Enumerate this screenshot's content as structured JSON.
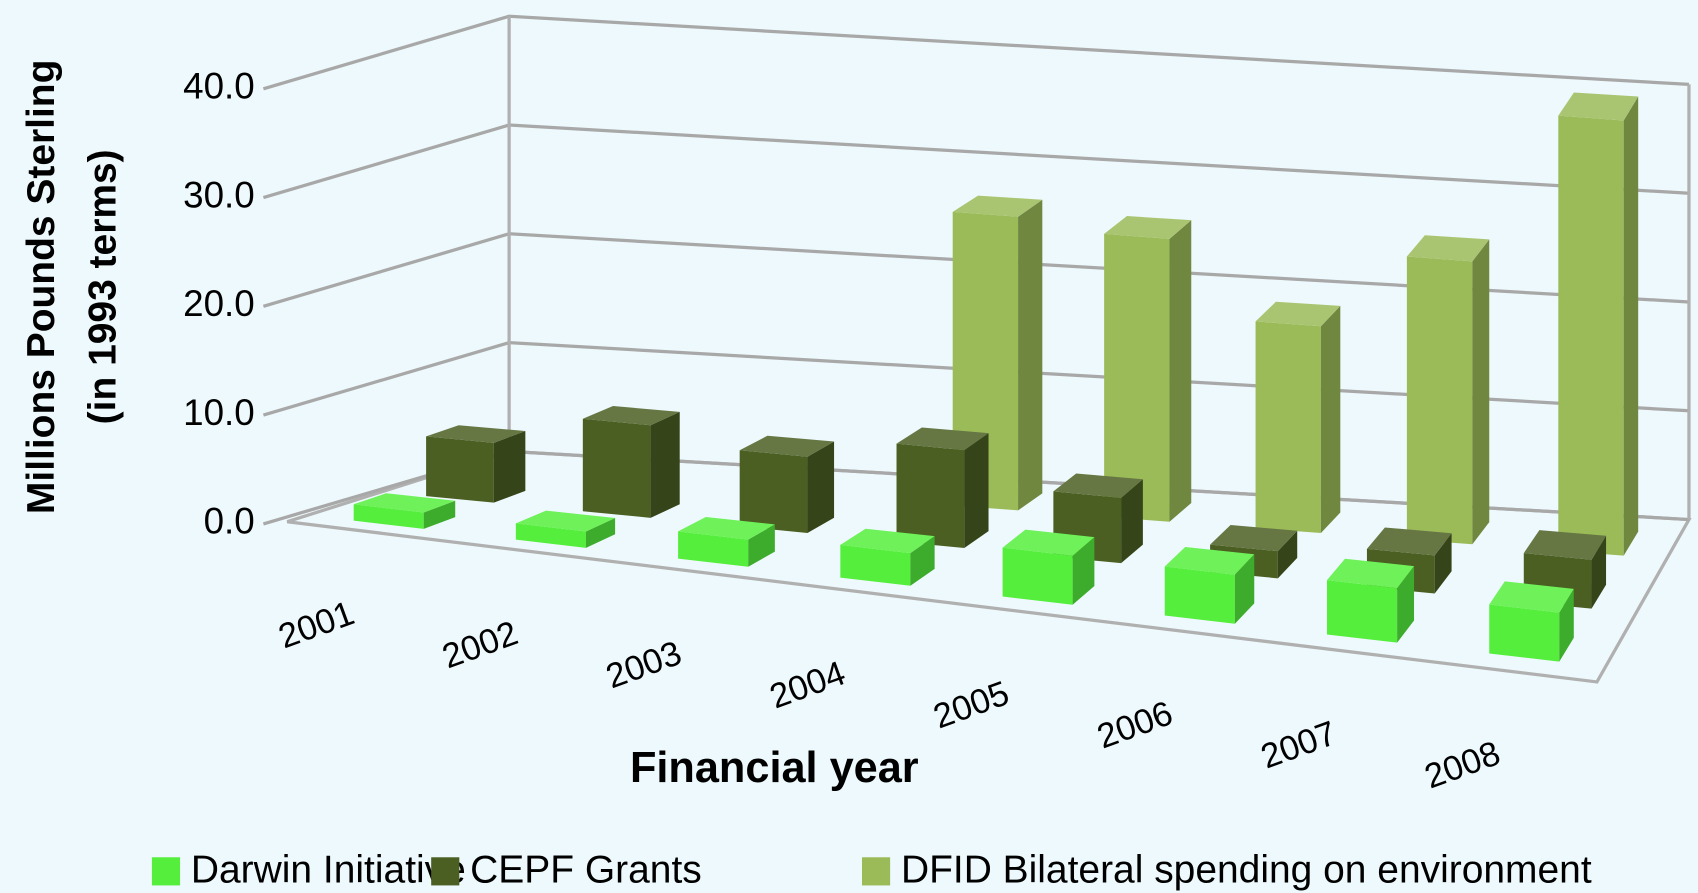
{
  "chart_data": {
    "type": "bar3d",
    "y_label": [
      "Millions  Pounds Sterling",
      "(in 1993 terms)"
    ],
    "x_label": "Financial year",
    "categories": [
      "2001",
      "2002",
      "2003",
      "2004",
      "2005",
      "2006",
      "2007",
      "2008"
    ],
    "series": [
      {
        "name": "Darwin Initiative",
        "color": "#55ee3c",
        "values": [
          1.5,
          1.5,
          2.5,
          3,
          4.5,
          4.5,
          5,
          4.5
        ]
      },
      {
        "name": "CEPF Grants",
        "color": "#4b5f23",
        "values": [
          5.5,
          8.5,
          7,
          9,
          6,
          2.5,
          3.5,
          4.5
        ]
      },
      {
        "name": "DFID Bilateral spending on environment",
        "color": "#9bbb59",
        "values": [
          null,
          null,
          null,
          27,
          26,
          19,
          26,
          40
        ]
      }
    ],
    "ylim": [
      0,
      40
    ],
    "yticks": [
      {
        "value": 0,
        "label": "0.0"
      },
      {
        "value": 10,
        "label": "10.0"
      },
      {
        "value": 20,
        "label": "20.0"
      },
      {
        "value": 30,
        "label": "30.0"
      },
      {
        "value": 40,
        "label": "40.0"
      }
    ],
    "grid": true,
    "legend": "bottom"
  }
}
